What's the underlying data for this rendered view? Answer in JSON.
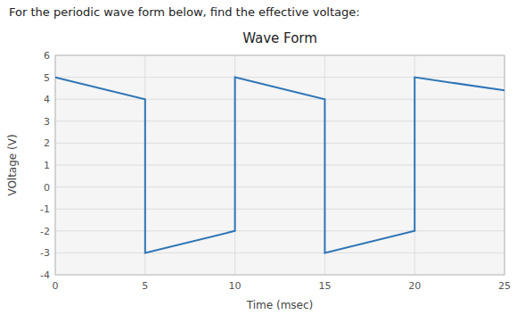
{
  "chart_data": {
    "type": "line",
    "title": "Wave Form",
    "subtitle": "For the periodic wave form below, find the effective voltage:",
    "xlabel": "Time (msec)",
    "ylabel": "VOltage (V)",
    "x": [
      0,
      5,
      5,
      10,
      10,
      15,
      15,
      20,
      20,
      25
    ],
    "values": [
      5,
      4,
      -3,
      -2,
      5,
      4,
      -3,
      -2,
      5,
      4.4
    ],
    "color": "#2E75B6",
    "xlim": [
      0,
      25
    ],
    "ylim": [
      -4,
      6
    ],
    "xticks": [
      0,
      5,
      10,
      15,
      20,
      25
    ],
    "yticks": [
      -4,
      -3,
      -2,
      -1,
      0,
      1,
      2,
      3,
      4,
      5,
      6
    ],
    "grid": true
  }
}
